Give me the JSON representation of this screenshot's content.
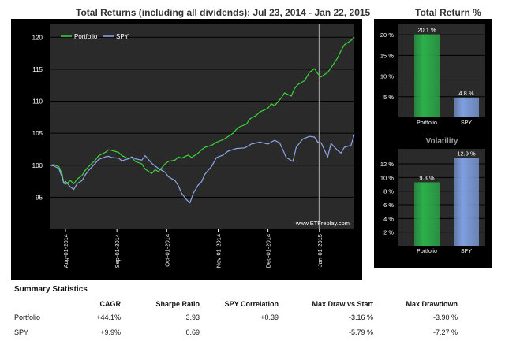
{
  "main_title": "Total Returns (including all dividends): Jul 23, 2014 - Jan 22, 2015",
  "side_title": "Total Return %",
  "chart_data": [
    {
      "type": "line",
      "title": "Total Returns (including all dividends): Jul 23, 2014 - Jan 22, 2015",
      "watermark": "www.ETFreplay.com",
      "x_ticks": [
        "Aug-01-2014",
        "Sep-01-2014",
        "Oct-01-2014",
        "Nov-01-2014",
        "Dec-01-2014",
        "Jan-01-2015"
      ],
      "x_range": [
        "2014-07-23",
        "2015-01-22"
      ],
      "ylim": [
        90,
        122
      ],
      "y_ticks": [
        95,
        100,
        105,
        110,
        115,
        120
      ],
      "vertical_marker": "2015-01-01",
      "legend_position": "top-left",
      "series": [
        {
          "name": "Portfolio",
          "color": "#3bd43b",
          "points": [
            [
              "2014-07-23",
              100.0
            ],
            [
              "2014-07-25",
              100.1
            ],
            [
              "2014-07-28",
              99.8
            ],
            [
              "2014-07-30",
              98.6
            ],
            [
              "2014-07-31",
              97.2
            ],
            [
              "2014-08-01",
              97.0
            ],
            [
              "2014-08-04",
              97.6
            ],
            [
              "2014-08-06",
              97.1
            ],
            [
              "2014-08-08",
              97.8
            ],
            [
              "2014-08-11",
              98.4
            ],
            [
              "2014-08-13",
              99.2
            ],
            [
              "2014-08-15",
              99.8
            ],
            [
              "2014-08-19",
              100.8
            ],
            [
              "2014-08-21",
              101.5
            ],
            [
              "2014-08-25",
              102.0
            ],
            [
              "2014-08-27",
              102.4
            ],
            [
              "2014-08-29",
              102.3
            ],
            [
              "2014-09-02",
              102.0
            ],
            [
              "2014-09-04",
              101.5
            ],
            [
              "2014-09-08",
              101.0
            ],
            [
              "2014-09-10",
              101.2
            ],
            [
              "2014-09-12",
              100.6
            ],
            [
              "2014-09-16",
              100.2
            ],
            [
              "2014-09-18",
              99.4
            ],
            [
              "2014-09-22",
              98.7
            ],
            [
              "2014-09-24",
              99.3
            ],
            [
              "2014-09-26",
              99.0
            ],
            [
              "2014-09-30",
              100.2
            ],
            [
              "2014-10-02",
              100.6
            ],
            [
              "2014-10-06",
              100.8
            ],
            [
              "2014-10-08",
              101.3
            ],
            [
              "2014-10-10",
              101.1
            ],
            [
              "2014-10-14",
              101.6
            ],
            [
              "2014-10-16",
              101.2
            ],
            [
              "2014-10-20",
              101.9
            ],
            [
              "2014-10-22",
              102.4
            ],
            [
              "2014-10-24",
              102.8
            ],
            [
              "2014-10-28",
              103.1
            ],
            [
              "2014-10-31",
              103.6
            ],
            [
              "2014-11-04",
              104.0
            ],
            [
              "2014-11-06",
              104.3
            ],
            [
              "2014-11-10",
              105.0
            ],
            [
              "2014-11-12",
              105.6
            ],
            [
              "2014-11-14",
              106.0
            ],
            [
              "2014-11-18",
              106.4
            ],
            [
              "2014-11-20",
              107.2
            ],
            [
              "2014-11-24",
              107.8
            ],
            [
              "2014-11-26",
              108.3
            ],
            [
              "2014-12-01",
              108.9
            ],
            [
              "2014-12-03",
              109.6
            ],
            [
              "2014-12-05",
              109.3
            ],
            [
              "2014-12-09",
              110.5
            ],
            [
              "2014-12-11",
              111.3
            ],
            [
              "2014-12-15",
              110.8
            ],
            [
              "2014-12-17",
              112.0
            ],
            [
              "2014-12-19",
              112.6
            ],
            [
              "2014-12-23",
              113.2
            ],
            [
              "2014-12-26",
              114.5
            ],
            [
              "2014-12-29",
              115.1
            ],
            [
              "2014-12-31",
              114.3
            ],
            [
              "2015-01-02",
              113.8
            ],
            [
              "2015-01-06",
              114.5
            ],
            [
              "2015-01-08",
              115.2
            ],
            [
              "2015-01-12",
              116.8
            ],
            [
              "2015-01-14",
              117.9
            ],
            [
              "2015-01-16",
              118.8
            ],
            [
              "2015-01-20",
              119.5
            ],
            [
              "2015-01-22",
              120.0
            ]
          ]
        },
        {
          "name": "SPY",
          "color": "#8fa8e8",
          "points": [
            [
              "2014-07-23",
              100.0
            ],
            [
              "2014-07-25",
              99.9
            ],
            [
              "2014-07-28",
              99.5
            ],
            [
              "2014-07-30",
              98.1
            ],
            [
              "2014-07-31",
              97.2
            ],
            [
              "2014-08-01",
              97.5
            ],
            [
              "2014-08-04",
              96.6
            ],
            [
              "2014-08-06",
              96.2
            ],
            [
              "2014-08-08",
              97.1
            ],
            [
              "2014-08-11",
              97.6
            ],
            [
              "2014-08-13",
              98.5
            ],
            [
              "2014-08-15",
              99.2
            ],
            [
              "2014-08-19",
              100.3
            ],
            [
              "2014-08-21",
              100.9
            ],
            [
              "2014-08-25",
              101.3
            ],
            [
              "2014-08-27",
              101.4
            ],
            [
              "2014-08-29",
              101.2
            ],
            [
              "2014-09-02",
              101.1
            ],
            [
              "2014-09-04",
              100.7
            ],
            [
              "2014-09-08",
              101.0
            ],
            [
              "2014-09-10",
              101.3
            ],
            [
              "2014-09-12",
              101.0
            ],
            [
              "2014-09-16",
              100.8
            ],
            [
              "2014-09-18",
              101.5
            ],
            [
              "2014-09-22",
              100.3
            ],
            [
              "2014-09-24",
              99.9
            ],
            [
              "2014-09-26",
              99.5
            ],
            [
              "2014-09-30",
              98.9
            ],
            [
              "2014-10-02",
              98.2
            ],
            [
              "2014-10-06",
              97.6
            ],
            [
              "2014-10-08",
              96.8
            ],
            [
              "2014-10-10",
              95.6
            ],
            [
              "2014-10-13",
              94.6
            ],
            [
              "2014-10-15",
              94.1
            ],
            [
              "2014-10-17",
              95.6
            ],
            [
              "2014-10-20",
              96.9
            ],
            [
              "2014-10-22",
              97.4
            ],
            [
              "2014-10-24",
              98.6
            ],
            [
              "2014-10-28",
              99.8
            ],
            [
              "2014-10-31",
              101.2
            ],
            [
              "2014-11-04",
              101.6
            ],
            [
              "2014-11-07",
              102.2
            ],
            [
              "2014-11-12",
              102.6
            ],
            [
              "2014-11-17",
              102.7
            ],
            [
              "2014-11-21",
              103.3
            ],
            [
              "2014-11-26",
              103.6
            ],
            [
              "2014-12-01",
              103.3
            ],
            [
              "2014-12-05",
              103.9
            ],
            [
              "2014-12-08",
              103.5
            ],
            [
              "2014-12-10",
              102.4
            ],
            [
              "2014-12-12",
              101.2
            ],
            [
              "2014-12-16",
              100.6
            ],
            [
              "2014-12-18",
              102.8
            ],
            [
              "2014-12-22",
              104.1
            ],
            [
              "2014-12-26",
              104.5
            ],
            [
              "2014-12-29",
              104.4
            ],
            [
              "2014-12-31",
              103.6
            ],
            [
              "2015-01-02",
              103.5
            ],
            [
              "2015-01-06",
              101.3
            ],
            [
              "2015-01-08",
              103.4
            ],
            [
              "2015-01-12",
              102.3
            ],
            [
              "2015-01-14",
              101.9
            ],
            [
              "2015-01-16",
              102.8
            ],
            [
              "2015-01-20",
              103.1
            ],
            [
              "2015-01-22",
              104.8
            ]
          ]
        }
      ]
    },
    {
      "type": "bar",
      "title": "Total Return %",
      "categories": [
        "Portfolio",
        "SPY"
      ],
      "values": [
        20.1,
        4.8
      ],
      "data_labels": [
        "20.1 %",
        "4.8 %"
      ],
      "colors": [
        "#2bb04a",
        "#7f9fe0"
      ],
      "ylim": [
        0,
        22.5
      ],
      "y_ticks": [
        "5 %",
        "10 %",
        "15 %",
        "20 %"
      ],
      "y_tick_values": [
        5,
        10,
        15,
        20
      ]
    },
    {
      "type": "bar",
      "title": "Volatility",
      "categories": [
        "Portfolio",
        "SPY"
      ],
      "values": [
        9.3,
        12.9
      ],
      "data_labels": [
        "9.3 %",
        "12.9 %"
      ],
      "colors": [
        "#2bb04a",
        "#7f9fe0"
      ],
      "ylim": [
        0,
        14.2
      ],
      "y_ticks": [
        "2 %",
        "4 %",
        "6 %",
        "8 %",
        "10 %",
        "12 %"
      ],
      "y_tick_values": [
        2,
        4,
        6,
        8,
        10,
        12
      ]
    }
  ],
  "summary": {
    "heading": "Summary Statistics",
    "columns": [
      "CAGR",
      "Sharpe Ratio",
      "SPY Correlation",
      "Max Draw vs Start",
      "Max Drawdown"
    ],
    "rows": [
      {
        "label": "Portfolio",
        "cagr": "+44.1%",
        "sharpe": "3.93",
        "corr": "+0.39",
        "maxdraw_start": "-3.16 %",
        "maxdrawdown": "-3.90 %"
      },
      {
        "label": "SPY",
        "cagr": "+9.9%",
        "sharpe": "0.69",
        "corr": "",
        "maxdraw_start": "-5.79 %",
        "maxdrawdown": "-7.27 %"
      }
    ]
  }
}
